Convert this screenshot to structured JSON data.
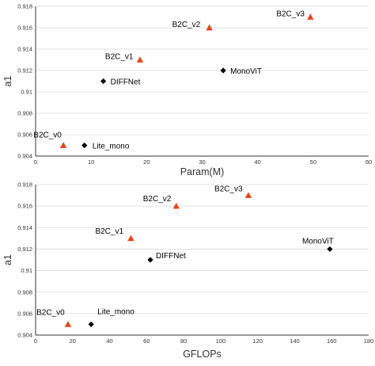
{
  "colors": {
    "B2C": "#e8431a",
    "other": "#000000",
    "grid": "#d9d9d9"
  },
  "chart_data": [
    {
      "type": "scatter",
      "title": "",
      "xlabel": "Param(M)",
      "ylabel": "a1",
      "xlim": [
        0,
        60
      ],
      "ylim": [
        0.904,
        0.918
      ],
      "x_ticks": [
        "0",
        "10",
        "20",
        "30",
        "40",
        "50",
        "60"
      ],
      "y_ticks": [
        "0.904",
        "0.906",
        "0.908",
        "0.91",
        "0.912",
        "0.914",
        "0.916",
        "0.918"
      ],
      "grid": "horizontal",
      "points": [
        {
          "label": "B2C_v0",
          "x": 5.0,
          "y": 0.905,
          "marker": "triangle",
          "color": "#e8431a"
        },
        {
          "label": "B2C_v1",
          "x": 18.8,
          "y": 0.913,
          "marker": "triangle",
          "color": "#e8431a"
        },
        {
          "label": "B2C_v2",
          "x": 31.3,
          "y": 0.916,
          "marker": "triangle",
          "color": "#e8431a"
        },
        {
          "label": "B2C_v3",
          "x": 49.5,
          "y": 0.917,
          "marker": "triangle",
          "color": "#e8431a"
        },
        {
          "label": "Lite_mono",
          "x": 8.8,
          "y": 0.905,
          "marker": "diamond",
          "color": "#000000"
        },
        {
          "label": "DIFFNet",
          "x": 12.2,
          "y": 0.911,
          "marker": "diamond",
          "color": "#000000"
        },
        {
          "label": "MonoViT",
          "x": 33.8,
          "y": 0.912,
          "marker": "diamond",
          "color": "#000000"
        }
      ]
    },
    {
      "type": "scatter",
      "title": "",
      "xlabel": "GFLOPs",
      "ylabel": "a1",
      "xlim": [
        0,
        180
      ],
      "ylim": [
        0.904,
        0.918
      ],
      "x_ticks": [
        "0",
        "20",
        "40",
        "60",
        "80",
        "100",
        "120",
        "140",
        "160",
        "180"
      ],
      "y_ticks": [
        "0.904",
        "0.906",
        "0.908",
        "0.91",
        "0.912",
        "0.914",
        "0.916",
        "0.918"
      ],
      "grid": "horizontal",
      "points": [
        {
          "label": "B2C_v0",
          "x": 17.5,
          "y": 0.905,
          "marker": "triangle",
          "color": "#e8431a"
        },
        {
          "label": "B2C_v1",
          "x": 51.5,
          "y": 0.913,
          "marker": "triangle",
          "color": "#e8431a"
        },
        {
          "label": "B2C_v2",
          "x": 76.0,
          "y": 0.916,
          "marker": "triangle",
          "color": "#e8431a"
        },
        {
          "label": "B2C_v3",
          "x": 115.0,
          "y": 0.917,
          "marker": "triangle",
          "color": "#e8431a"
        },
        {
          "label": "Lite_mono",
          "x": 30.0,
          "y": 0.905,
          "marker": "diamond",
          "color": "#000000"
        },
        {
          "label": "DIFFNet",
          "x": 62.0,
          "y": 0.911,
          "marker": "diamond",
          "color": "#000000"
        },
        {
          "label": "MonoViT",
          "x": 159.0,
          "y": 0.912,
          "marker": "diamond",
          "color": "#000000"
        }
      ]
    }
  ]
}
